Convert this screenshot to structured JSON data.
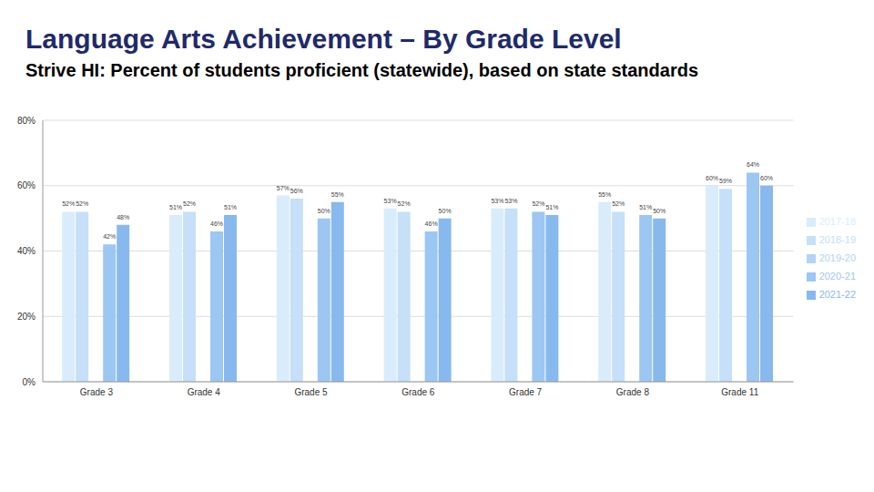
{
  "chart_data": {
    "type": "bar",
    "title": "Language Arts Achievement – By Grade Level",
    "subtitle": "Strive HI: Percent of students proficient (statewide), based on state standards",
    "categories": [
      "Grade 3",
      "Grade 4",
      "Grade 5",
      "Grade 6",
      "Grade 7",
      "Grade 8",
      "Grade 11"
    ],
    "series": [
      {
        "name": "2017-18",
        "color": "#d9ecfb",
        "values": [
          52,
          51,
          57,
          53,
          53,
          55,
          60
        ],
        "value_labels": [
          "52%",
          "51%",
          "57%",
          "53%",
          "53%",
          "55%",
          "60%"
        ]
      },
      {
        "name": "2018-19",
        "color": "#c5e0f8",
        "values": [
          52,
          52,
          56,
          52,
          53,
          52,
          59
        ],
        "value_labels": [
          "52%",
          "52%",
          "56%",
          "52%",
          "53%",
          "52%",
          "59%"
        ]
      },
      {
        "name": "2019-20",
        "color": "#b1d4f5",
        "values": [
          null,
          null,
          null,
          null,
          null,
          null,
          null
        ],
        "value_labels": [
          null,
          null,
          null,
          null,
          null,
          null,
          null
        ]
      },
      {
        "name": "2020-21",
        "color": "#9cc7f2",
        "values": [
          42,
          46,
          50,
          46,
          52,
          51,
          64
        ],
        "value_labels": [
          "42%",
          "46%",
          "50%",
          "46%",
          "52%",
          "51%",
          "64%"
        ]
      },
      {
        "name": "2021-22",
        "color": "#88b9ee",
        "values": [
          48,
          51,
          55,
          50,
          51,
          50,
          60
        ],
        "value_labels": [
          "48%",
          "51%",
          "55%",
          "50%",
          "51%",
          "50%",
          "60%"
        ]
      }
    ],
    "ylim": [
      0,
      80
    ],
    "yticks": [
      {
        "value": 0,
        "label": "0%"
      },
      {
        "value": 20,
        "label": "20%"
      },
      {
        "value": 40,
        "label": "40%"
      },
      {
        "value": 60,
        "label": "60%"
      },
      {
        "value": 80,
        "label": "80%"
      }
    ],
    "grid": true,
    "legend": "right",
    "data_labels": true
  }
}
